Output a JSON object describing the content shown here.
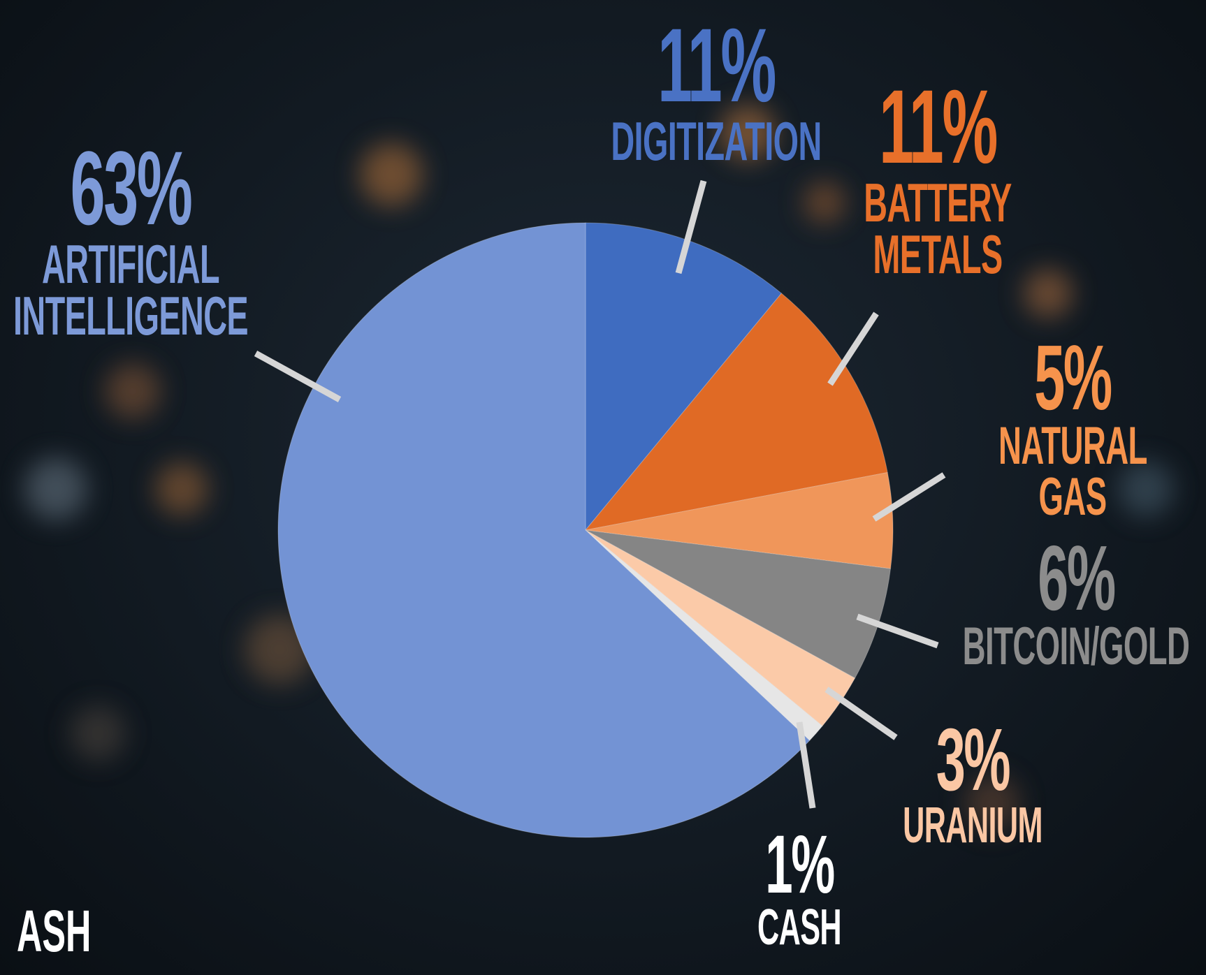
{
  "chart_data": {
    "type": "pie",
    "categories": [
      "DIGITIZATION",
      "BATTERY\nMETALS",
      "NATURAL GAS",
      "BITCOIN/GOLD",
      "URANIUM",
      "CASH",
      "ARTIFICIAL\nINTELLIGENCE"
    ],
    "values": [
      11,
      11,
      5,
      6,
      3,
      1,
      63
    ],
    "value_labels": [
      "11%",
      "11%",
      "5%",
      "6%",
      "3%",
      "1%",
      "63%"
    ],
    "colors": [
      "#3f6cc0",
      "#e06a25",
      "#f0965a",
      "#858585",
      "#fbcaa8",
      "#e6e6e6",
      "#7393d4"
    ],
    "label_colors": [
      "#4a72c4",
      "#e8702a",
      "#f6934c",
      "#8c8c8c",
      "#fbc7a4",
      "#ffffff",
      "#7d9ad8"
    ]
  },
  "fragment_text": "ASH"
}
